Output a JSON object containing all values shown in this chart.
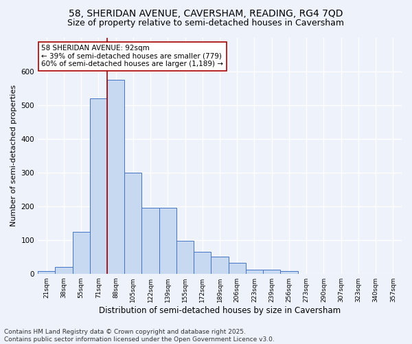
{
  "title1": "58, SHERIDAN AVENUE, CAVERSHAM, READING, RG4 7QD",
  "title2": "Size of property relative to semi-detached houses in Caversham",
  "xlabel": "Distribution of semi-detached houses by size in Caversham",
  "ylabel": "Number of semi-detached properties",
  "categories": [
    "21sqm",
    "38sqm",
    "55sqm",
    "71sqm",
    "88sqm",
    "105sqm",
    "122sqm",
    "139sqm",
    "155sqm",
    "172sqm",
    "189sqm",
    "206sqm",
    "223sqm",
    "239sqm",
    "256sqm",
    "273sqm",
    "290sqm",
    "307sqm",
    "323sqm",
    "340sqm",
    "357sqm"
  ],
  "values": [
    8,
    20,
    125,
    520,
    575,
    300,
    195,
    195,
    97,
    65,
    50,
    32,
    12,
    12,
    8,
    0,
    0,
    0,
    0,
    0,
    0
  ],
  "bar_color": "#c6d9f1",
  "bar_edge_color": "#4472c4",
  "vline_x": 3.5,
  "vline_color": "#aa0000",
  "annotation_text": "58 SHERIDAN AVENUE: 92sqm\n← 39% of semi-detached houses are smaller (779)\n60% of semi-detached houses are larger (1,189) →",
  "annotation_box_color": "white",
  "annotation_box_edge": "#aa0000",
  "ylim": [
    0,
    700
  ],
  "yticks": [
    0,
    100,
    200,
    300,
    400,
    500,
    600
  ],
  "footer": "Contains HM Land Registry data © Crown copyright and database right 2025.\nContains public sector information licensed under the Open Government Licence v3.0.",
  "bg_color": "#eef2fa",
  "grid_color": "white",
  "title1_fontsize": 10,
  "title2_fontsize": 9,
  "xlabel_fontsize": 8.5,
  "ylabel_fontsize": 8,
  "footer_fontsize": 6.5
}
